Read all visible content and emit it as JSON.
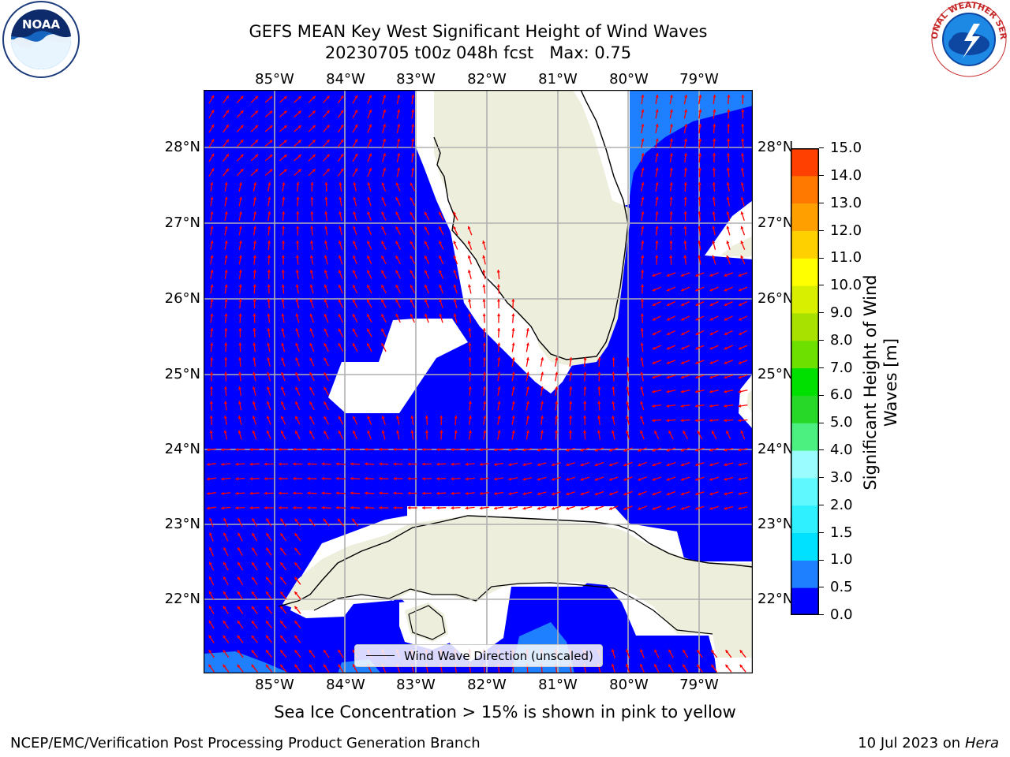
{
  "title": {
    "line1": "GEFS MEAN Key West Significant Height of Wind Waves",
    "line2": "20230705 t00z 048h fcst   Max: 0.75"
  },
  "map": {
    "lon_labels": [
      "85°W",
      "84°W",
      "83°W",
      "82°W",
      "81°W",
      "80°W",
      "79°W"
    ],
    "lat_labels": [
      "28°N",
      "27°N",
      "26°N",
      "25°N",
      "24°N",
      "23°N",
      "22°N"
    ],
    "legend_label": "Wind Wave Direction (unscaled)",
    "colors": {
      "ocean": "#0000ff",
      "land": "#eeeedd",
      "arrow": "#ff0000",
      "grid": "#b0b0b0"
    }
  },
  "colorbar": {
    "label": "Significant Height of Wind Waves [m]",
    "ticks": [
      "0.0",
      "0.5",
      "1.0",
      "1.5",
      "2.0",
      "3.0",
      "4.0",
      "5.0",
      "6.0",
      "7.0",
      "8.0",
      "9.0",
      "10.0",
      "11.0",
      "12.0",
      "13.0",
      "14.0",
      "15.0"
    ],
    "colors": [
      "#0000ff",
      "#1e7fff",
      "#00e0ff",
      "#2ef0ff",
      "#5ff8ff",
      "#9afcff",
      "#4cf080",
      "#28d828",
      "#00e000",
      "#6ee000",
      "#a8e000",
      "#d8f000",
      "#ffff00",
      "#ffd000",
      "#ffa000",
      "#ff7800",
      "#ff4000",
      "#ff0000"
    ]
  },
  "note": "Sea Ice Concentration > 15% is shown in pink to yellow",
  "footer": {
    "left": "NCEP/EMC/Verification Post Processing Product Generation Branch",
    "right_date": "10 Jul 2023 on ",
    "right_host": "Hera"
  },
  "logos": {
    "left": "NOAA",
    "right": "NATIONAL WEATHER SERVICE"
  }
}
